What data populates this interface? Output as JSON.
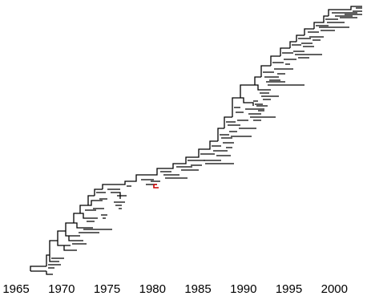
{
  "figure": {
    "type": "phylogenetic-tree",
    "x_axis": {
      "range": [
        1965,
        2003
      ],
      "tick_labels": [
        "1965",
        "1970",
        "1975",
        "1980",
        "1985",
        "1990",
        "1995",
        "2000"
      ]
    },
    "colors": {
      "branch": "#000000",
      "highlight_node": "#cc0000"
    },
    "highlighted_node_year": 1979.5
  }
}
